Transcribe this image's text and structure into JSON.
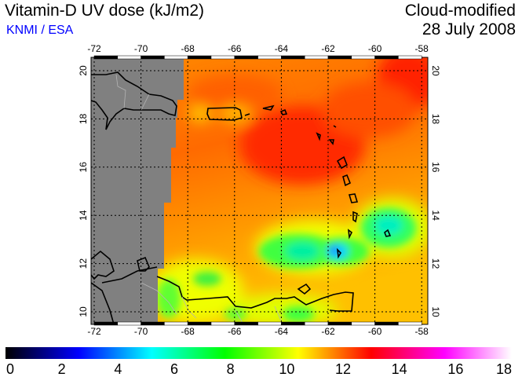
{
  "header": {
    "title": "Vitamin-D UV dose (kJ/m2)",
    "source": "KNMI / ESA",
    "mode": "Cloud-modified",
    "date": "28 July 2008"
  },
  "map": {
    "lon_range": [
      -72.2,
      -57.8
    ],
    "lat_range": [
      9.5,
      20.6
    ],
    "lon_ticks": [
      "-72",
      "-70",
      "-68",
      "-66",
      "-64",
      "-62",
      "-60",
      "-58"
    ],
    "lat_ticks": [
      "20",
      "18",
      "16",
      "14",
      "12",
      "10"
    ],
    "colors": {
      "no_data": "#808080",
      "coast": "#000000",
      "border": "#b4b4b4"
    }
  },
  "colorbar": {
    "min": 0,
    "max": 18,
    "labels": [
      "0",
      "2",
      "4",
      "6",
      "8",
      "10",
      "12",
      "14",
      "16",
      "18"
    ],
    "stops": [
      {
        "v": 0,
        "c": "#000000"
      },
      {
        "v": 2.6,
        "c": "#0000ff"
      },
      {
        "v": 5.2,
        "c": "#00ffff"
      },
      {
        "v": 7.8,
        "c": "#00ff00"
      },
      {
        "v": 10.4,
        "c": "#ffff00"
      },
      {
        "v": 13,
        "c": "#ff0000"
      },
      {
        "v": 15.6,
        "c": "#ff00ff"
      },
      {
        "v": 18,
        "c": "#ffffff"
      }
    ]
  }
}
